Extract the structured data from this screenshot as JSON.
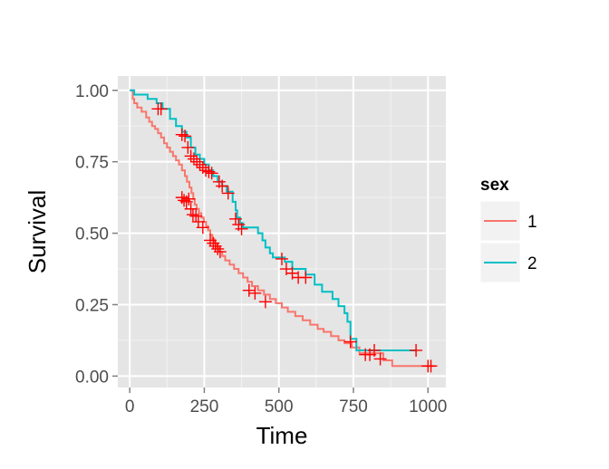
{
  "chart_data": {
    "type": "line",
    "title": "",
    "xlabel": "Time",
    "ylabel": "Survival",
    "xlim": [
      -40,
      1060
    ],
    "ylim": [
      -0.04,
      1.05
    ],
    "x_ticks": [
      0,
      250,
      500,
      750,
      1000
    ],
    "x_tick_labels": [
      "0",
      "250",
      "500",
      "750",
      "1000"
    ],
    "y_ticks": [
      0,
      0.25,
      0.5,
      0.75,
      1.0
    ],
    "y_tick_labels": [
      "0.00",
      "0.25",
      "0.50",
      "0.75",
      "1.00"
    ],
    "grid": true,
    "legend": {
      "title": "sex",
      "placement": "right"
    },
    "series": [
      {
        "name": "1",
        "color": "#f8766d",
        "steps": [
          [
            0,
            1.0
          ],
          [
            10,
            0.97
          ],
          [
            15,
            0.955
          ],
          [
            25,
            0.94
          ],
          [
            40,
            0.925
          ],
          [
            55,
            0.905
          ],
          [
            65,
            0.89
          ],
          [
            75,
            0.875
          ],
          [
            85,
            0.865
          ],
          [
            95,
            0.85
          ],
          [
            105,
            0.835
          ],
          [
            115,
            0.815
          ],
          [
            125,
            0.8
          ],
          [
            135,
            0.785
          ],
          [
            145,
            0.77
          ],
          [
            155,
            0.755
          ],
          [
            165,
            0.74
          ],
          [
            175,
            0.72
          ],
          [
            185,
            0.7
          ],
          [
            192,
            0.68
          ],
          [
            200,
            0.66
          ],
          [
            207,
            0.64
          ],
          [
            213,
            0.62
          ],
          [
            218,
            0.6
          ],
          [
            224,
            0.585
          ],
          [
            232,
            0.57
          ],
          [
            240,
            0.555
          ],
          [
            248,
            0.54
          ],
          [
            256,
            0.525
          ],
          [
            263,
            0.51
          ],
          [
            270,
            0.495
          ],
          [
            277,
            0.48
          ],
          [
            284,
            0.465
          ],
          [
            292,
            0.45
          ],
          [
            300,
            0.435
          ],
          [
            310,
            0.42
          ],
          [
            320,
            0.405
          ],
          [
            335,
            0.39
          ],
          [
            350,
            0.375
          ],
          [
            365,
            0.36
          ],
          [
            380,
            0.345
          ],
          [
            395,
            0.33
          ],
          [
            410,
            0.315
          ],
          [
            430,
            0.3
          ],
          [
            450,
            0.285
          ],
          [
            470,
            0.27
          ],
          [
            490,
            0.255
          ],
          [
            510,
            0.24
          ],
          [
            530,
            0.225
          ],
          [
            555,
            0.21
          ],
          [
            580,
            0.195
          ],
          [
            605,
            0.18
          ],
          [
            630,
            0.165
          ],
          [
            650,
            0.155
          ],
          [
            675,
            0.14
          ],
          [
            700,
            0.125
          ],
          [
            720,
            0.115
          ],
          [
            745,
            0.1
          ],
          [
            770,
            0.08
          ],
          [
            850,
            0.055
          ],
          [
            880,
            0.035
          ],
          [
            1025,
            0.035
          ]
        ],
        "censors": [
          [
            95,
            0.935
          ],
          [
            175,
            0.625
          ],
          [
            182,
            0.615
          ],
          [
            190,
            0.61
          ],
          [
            198,
            0.62
          ],
          [
            205,
            0.585
          ],
          [
            212,
            0.565
          ],
          [
            222,
            0.56
          ],
          [
            230,
            0.54
          ],
          [
            245,
            0.52
          ],
          [
            270,
            0.475
          ],
          [
            280,
            0.465
          ],
          [
            287,
            0.455
          ],
          [
            295,
            0.445
          ],
          [
            303,
            0.435
          ],
          [
            400,
            0.3
          ],
          [
            420,
            0.29
          ],
          [
            455,
            0.26
          ],
          [
            790,
            0.075
          ],
          [
            805,
            0.075
          ],
          [
            820,
            0.09
          ],
          [
            840,
            0.06
          ],
          [
            1000,
            0.035
          ],
          [
            1010,
            0.035
          ]
        ]
      },
      {
        "name": "2",
        "color": "#00bfc4",
        "steps": [
          [
            0,
            1.0
          ],
          [
            15,
            0.985
          ],
          [
            60,
            0.97
          ],
          [
            90,
            0.955
          ],
          [
            110,
            0.935
          ],
          [
            135,
            0.9
          ],
          [
            155,
            0.875
          ],
          [
            175,
            0.855
          ],
          [
            190,
            0.835
          ],
          [
            205,
            0.8
          ],
          [
            220,
            0.775
          ],
          [
            235,
            0.76
          ],
          [
            250,
            0.74
          ],
          [
            265,
            0.72
          ],
          [
            280,
            0.7
          ],
          [
            295,
            0.68
          ],
          [
            310,
            0.665
          ],
          [
            325,
            0.645
          ],
          [
            345,
            0.61
          ],
          [
            355,
            0.58
          ],
          [
            360,
            0.555
          ],
          [
            370,
            0.535
          ],
          [
            380,
            0.52
          ],
          [
            430,
            0.5
          ],
          [
            445,
            0.475
          ],
          [
            455,
            0.45
          ],
          [
            470,
            0.43
          ],
          [
            480,
            0.415
          ],
          [
            520,
            0.4
          ],
          [
            545,
            0.375
          ],
          [
            590,
            0.355
          ],
          [
            620,
            0.32
          ],
          [
            645,
            0.295
          ],
          [
            680,
            0.27
          ],
          [
            700,
            0.245
          ],
          [
            720,
            0.22
          ],
          [
            730,
            0.19
          ],
          [
            740,
            0.13
          ],
          [
            760,
            0.09
          ],
          [
            960,
            0.09
          ]
        ],
        "censors": [
          [
            105,
            0.935
          ],
          [
            175,
            0.845
          ],
          [
            185,
            0.84
          ],
          [
            195,
            0.8
          ],
          [
            205,
            0.77
          ],
          [
            215,
            0.76
          ],
          [
            225,
            0.75
          ],
          [
            235,
            0.74
          ],
          [
            245,
            0.73
          ],
          [
            255,
            0.72
          ],
          [
            265,
            0.715
          ],
          [
            275,
            0.71
          ],
          [
            300,
            0.68
          ],
          [
            310,
            0.665
          ],
          [
            330,
            0.64
          ],
          [
            355,
            0.55
          ],
          [
            365,
            0.53
          ],
          [
            375,
            0.515
          ],
          [
            510,
            0.41
          ],
          [
            525,
            0.375
          ],
          [
            545,
            0.36
          ],
          [
            565,
            0.345
          ],
          [
            590,
            0.345
          ],
          [
            740,
            0.12
          ],
          [
            960,
            0.09
          ]
        ]
      }
    ]
  }
}
